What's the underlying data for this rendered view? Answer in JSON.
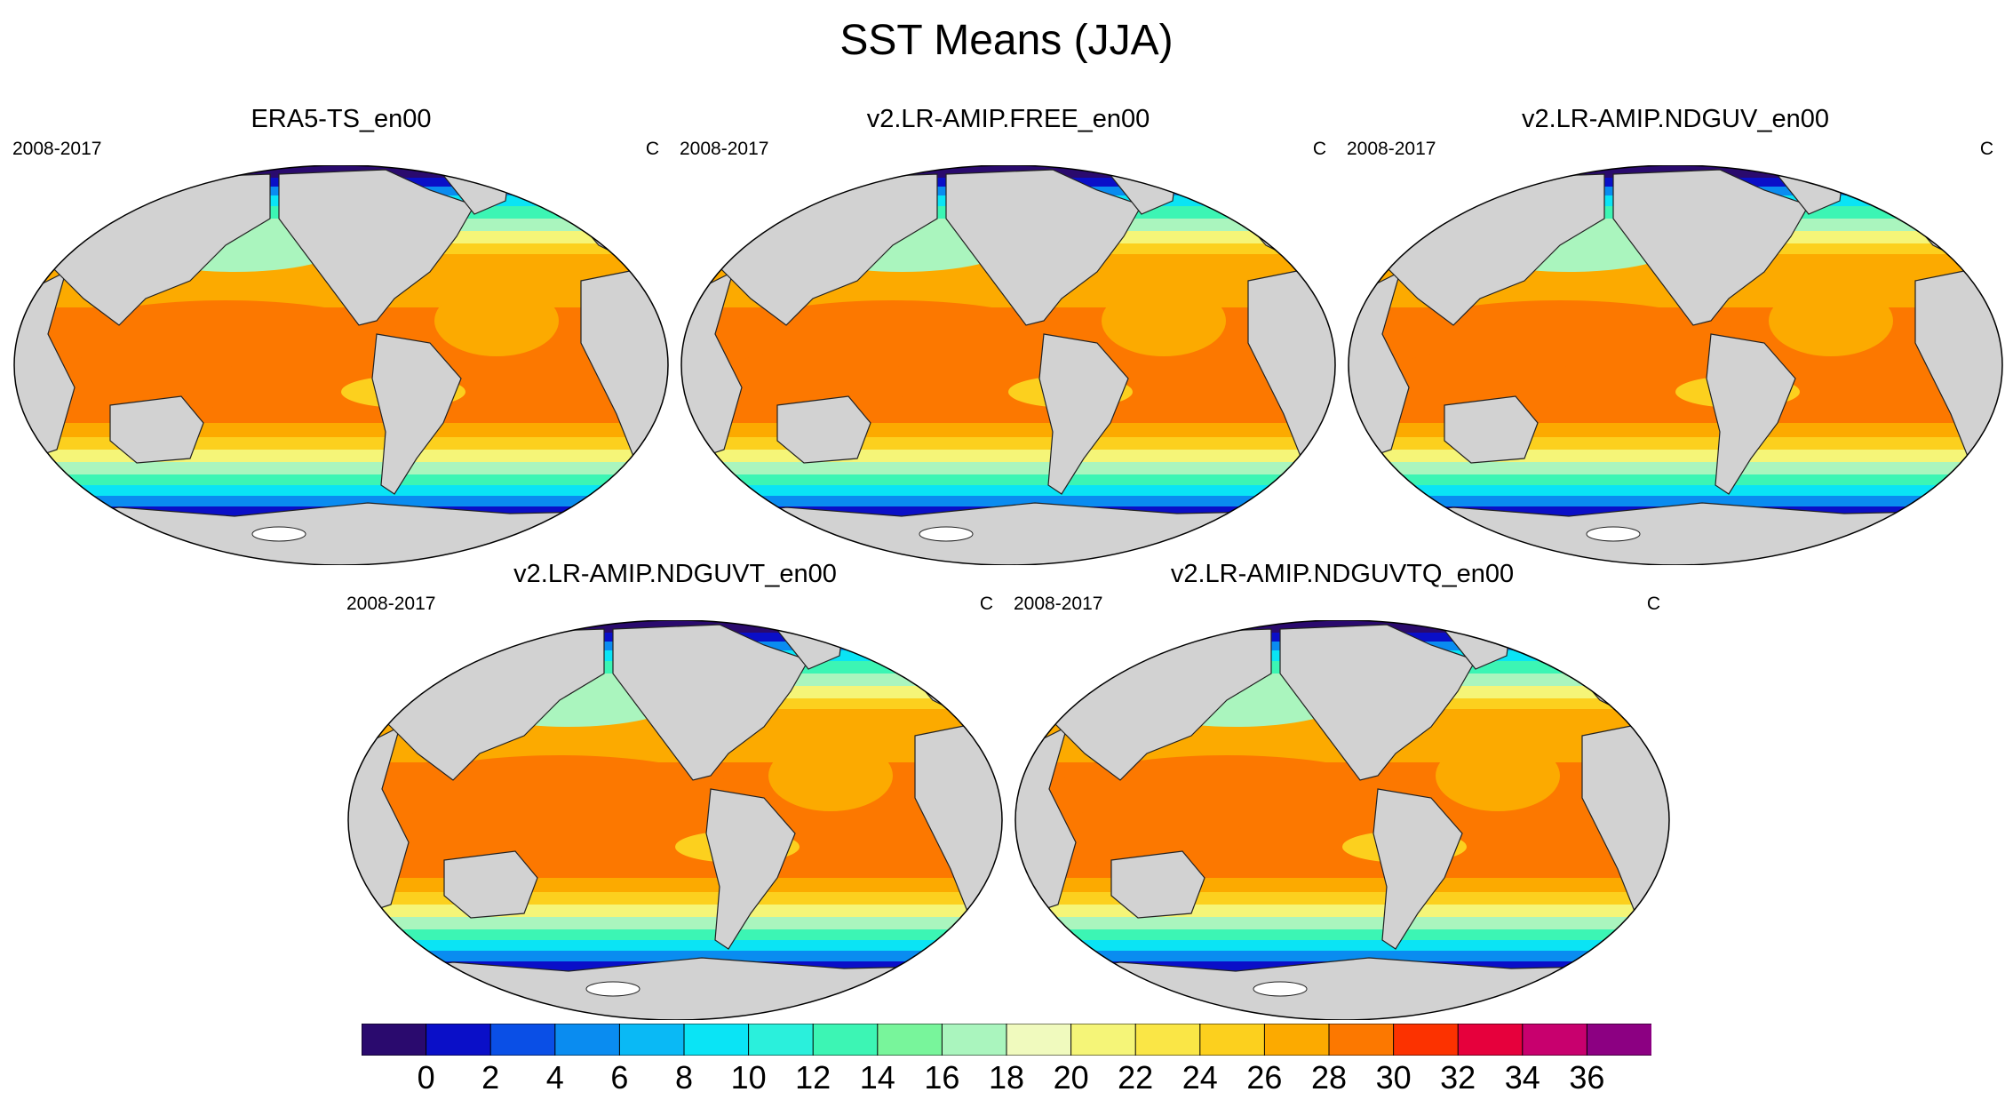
{
  "figure": {
    "title": "SST Means (JJA)"
  },
  "panels": [
    {
      "title": "ERA5-TS_en00",
      "period": "2008-2017",
      "units": "C"
    },
    {
      "title": "v2.LR-AMIP.FREE_en00",
      "period": "2008-2017",
      "units": "C"
    },
    {
      "title": "v2.LR-AMIP.NDGUV_en00",
      "period": "2008-2017",
      "units": "C"
    },
    {
      "title": "v2.LR-AMIP.NDGUVT_en00",
      "period": "2008-2017",
      "units": "C"
    },
    {
      "title": "v2.LR-AMIP.NDGUVTQ_en00",
      "period": "2008-2017",
      "units": "C"
    }
  ],
  "colorbar": {
    "labels": [
      "0",
      "2",
      "4",
      "6",
      "8",
      "10",
      "12",
      "14",
      "16",
      "18",
      "20",
      "22",
      "24",
      "26",
      "28",
      "30",
      "32",
      "34",
      "36"
    ],
    "colors": [
      "#2a0a6e",
      "#0a0fc8",
      "#0a4fe6",
      "#0a8cf0",
      "#0ab9f5",
      "#0ae4f5",
      "#2af0dc",
      "#3cf5b4",
      "#78f59b",
      "#aaf5be",
      "#f0fabe",
      "#f5f578",
      "#fae646",
      "#fcd01e",
      "#fcaa00",
      "#fc7800",
      "#fc3200",
      "#e6003c",
      "#c8006e",
      "#8c0082"
    ],
    "land_color": "#d2d2d2"
  }
}
